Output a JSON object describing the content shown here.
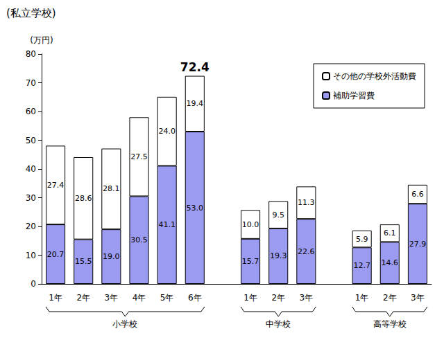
{
  "chart_data": {
    "type": "bar",
    "title": "(私立学校)",
    "y_label": "(万円)",
    "categories": [
      "1年",
      "2年",
      "3年",
      "4年",
      "5年",
      "6年",
      null,
      "1年",
      "2年",
      "3年",
      null,
      "1年",
      "2年",
      "3年"
    ],
    "group_labels": [
      "小学校",
      "中学校",
      "高等学校"
    ],
    "series": [
      {
        "name": "補助学習費",
        "color": "#9b9bf2",
        "values": [
          20.7,
          15.5,
          19.0,
          30.5,
          41.1,
          53.0,
          null,
          15.7,
          19.3,
          22.6,
          null,
          12.7,
          14.6,
          27.9
        ],
        "value_labels": [
          "20.7",
          "15.5",
          "19.0",
          "30.5",
          "41.1",
          "53.0",
          null,
          "15.7",
          "19.3",
          "22.6",
          null,
          "12.7",
          "14.6",
          "27.9"
        ]
      },
      {
        "name": "その他の学校外活動費",
        "color": "#ffffff",
        "values": [
          27.4,
          28.6,
          28.1,
          27.5,
          24.0,
          19.4,
          null,
          10.0,
          9.5,
          11.3,
          null,
          5.9,
          6.1,
          6.6
        ],
        "value_labels": [
          "27.4",
          "28.6",
          "28.1",
          "27.5",
          "24.0",
          "19.4",
          null,
          "10.0",
          "9.5",
          "11.3",
          null,
          "5.9",
          "6.1",
          "6.6"
        ]
      }
    ],
    "annotations": [
      {
        "text": "72.4",
        "category_index": 5,
        "value": 72.4
      }
    ],
    "ylim": [
      0,
      80
    ],
    "yticks": [
      0,
      10,
      20,
      30,
      40,
      50,
      60,
      70,
      80
    ],
    "stacked": true,
    "data_labels": true,
    "grid": false,
    "legend": "upper right"
  }
}
